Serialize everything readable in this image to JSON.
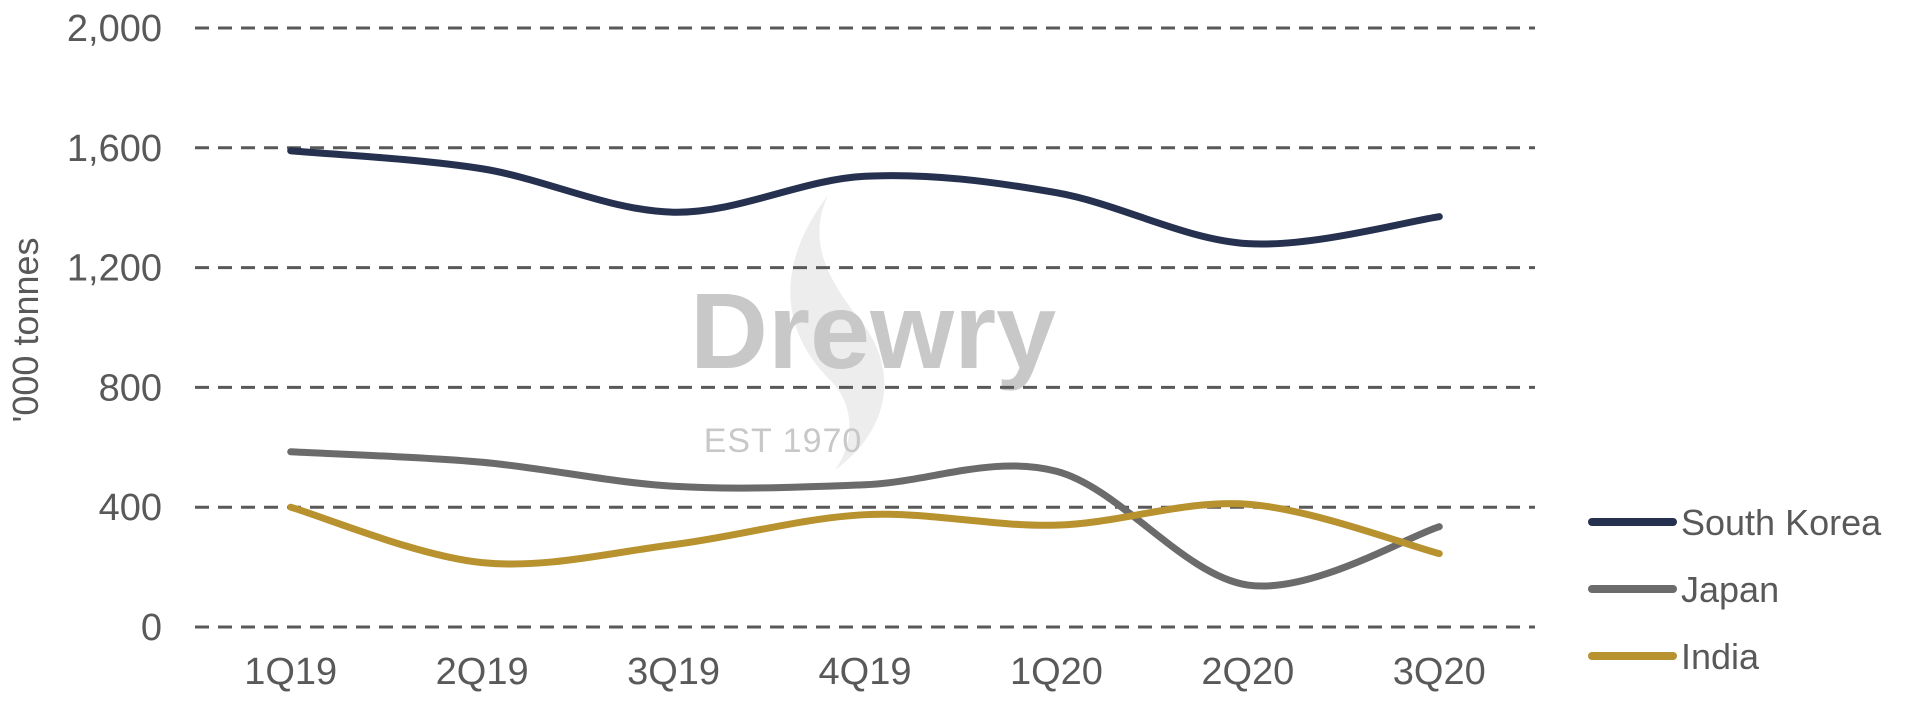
{
  "chart_data": {
    "type": "line",
    "categories": [
      "1Q19",
      "2Q19",
      "3Q19",
      "4Q19",
      "1Q20",
      "2Q20",
      "3Q20"
    ],
    "series": [
      {
        "name": "South Korea",
        "color": "#26304f",
        "values": [
          1590,
          1530,
          1385,
          1505,
          1450,
          1280,
          1370
        ]
      },
      {
        "name": "Japan",
        "color": "#6b6b6b",
        "values": [
          585,
          550,
          470,
          475,
          520,
          140,
          335
        ]
      },
      {
        "name": "India",
        "color": "#b8922f",
        "values": [
          400,
          215,
          275,
          375,
          340,
          410,
          245
        ]
      }
    ],
    "ylabel": "'000 tonnes",
    "ylim": [
      0,
      2000
    ],
    "yticks": [
      0,
      400,
      800,
      1200,
      1600,
      2000
    ],
    "ytick_labels": [
      "0",
      "400",
      "800",
      "1,200",
      "1,600",
      "2,000"
    ],
    "grid": true,
    "legend_position": "bottom-right"
  },
  "watermark": {
    "brand": "Drewry",
    "tagline": "EST 1970"
  }
}
